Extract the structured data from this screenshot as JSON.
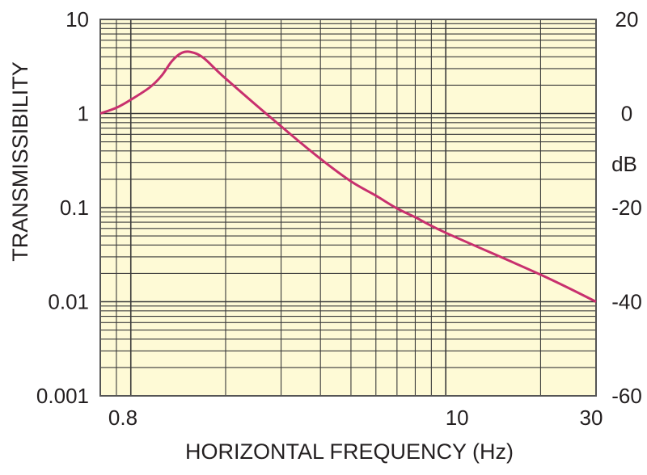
{
  "chart_data": {
    "type": "line",
    "title": "",
    "xlabel": "HORIZONTAL FREQUENCY (Hz)",
    "ylabel": "TRANSMISSIBILITY",
    "y2label": "dB",
    "xscale": "log",
    "yscale": "log",
    "xlim": [
      0.8,
      30
    ],
    "ylim": [
      0.001,
      10
    ],
    "y2lim": [
      -60,
      20
    ],
    "x_ticks": [
      {
        "value": 0.8,
        "label": "0.8"
      },
      {
        "value": 10,
        "label": "10"
      },
      {
        "value": 30,
        "label": "30"
      }
    ],
    "y_ticks": [
      {
        "value": 10,
        "label": "10"
      },
      {
        "value": 1,
        "label": "1"
      },
      {
        "value": 0.1,
        "label": "0.1"
      },
      {
        "value": 0.01,
        "label": "0.01"
      },
      {
        "value": 0.001,
        "label": "0.001"
      }
    ],
    "y2_ticks": [
      {
        "value": 20,
        "label": "20"
      },
      {
        "value": 0,
        "label": "0"
      },
      {
        "value": -20,
        "label": "-20"
      },
      {
        "value": -40,
        "label": "-40"
      },
      {
        "value": -60,
        "label": "-60"
      }
    ],
    "grid": true,
    "colors": {
      "background": "#fefad6",
      "line": "#c8306e",
      "grid": "#3a3a3a"
    },
    "series": [
      {
        "x": [
          0.8,
          0.9,
          1.0,
          1.15,
          1.25,
          1.35,
          1.45,
          1.55,
          1.7,
          2.0,
          3.0,
          4.0,
          5.0,
          6.0,
          7.0,
          8.0,
          10.0,
          20.0,
          30.0
        ],
        "y": [
          1.0,
          1.15,
          1.4,
          1.9,
          2.5,
          3.6,
          4.4,
          4.5,
          3.9,
          2.35,
          0.73,
          0.33,
          0.19,
          0.134,
          0.098,
          0.079,
          0.054,
          0.0194,
          0.01
        ]
      }
    ]
  }
}
